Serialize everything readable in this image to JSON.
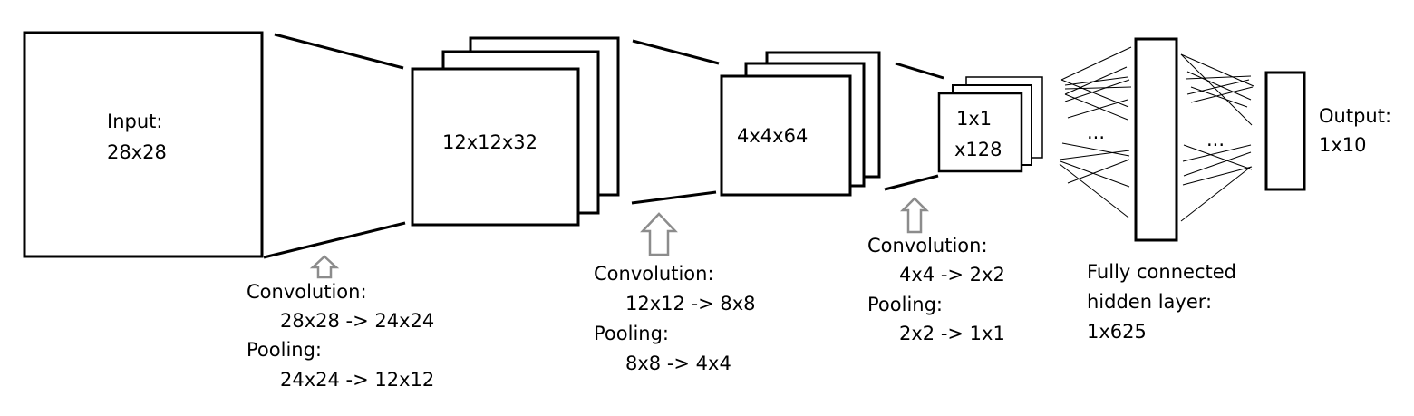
{
  "input": {
    "title": "Input:",
    "size": "28x28"
  },
  "layer1": {
    "volume": "12x12x32",
    "conv_label": "Convolution:",
    "conv_value": "28x28 -> 24x24",
    "pool_label": "Pooling:",
    "pool_value": "24x24 -> 12x12"
  },
  "layer2": {
    "volume": "4x4x64",
    "conv_label": "Convolution:",
    "conv_value": "12x12 -> 8x8",
    "pool_label": "Pooling:",
    "pool_value": "8x8 -> 4x4"
  },
  "layer3": {
    "volume_line1": "1x1",
    "volume_line2": "x128",
    "conv_label": "Convolution:",
    "conv_value": "4x4 -> 2x2",
    "pool_label": "Pooling:",
    "pool_value": "2x2 -> 1x1"
  },
  "hidden": {
    "line1": "Fully connected",
    "line2": "hidden layer:",
    "line3": "1x625",
    "ellipsis_left": "...",
    "ellipsis_right": "..."
  },
  "output": {
    "title": "Output:",
    "size": "1x10"
  }
}
